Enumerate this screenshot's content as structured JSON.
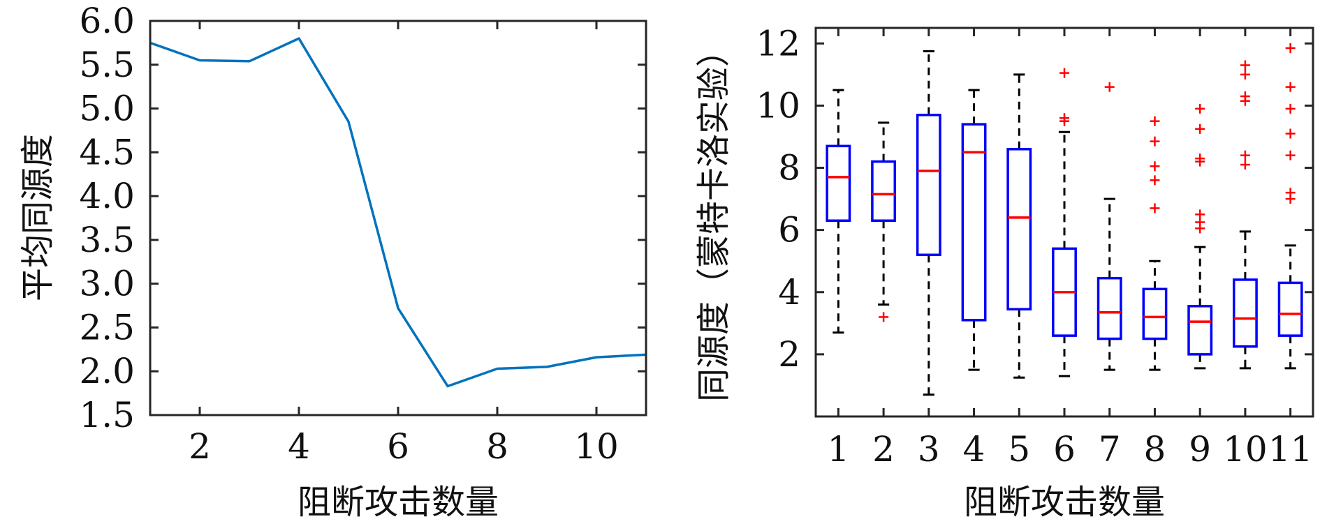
{
  "chart_data": [
    {
      "type": "line",
      "xlabel": "阻断攻击数量",
      "ylabel": "平均同源度",
      "xlim": [
        1,
        11
      ],
      "ylim": [
        1.5,
        6.0
      ],
      "xticks": [
        "2",
        "4",
        "6",
        "8",
        "10"
      ],
      "yticks": [
        "1.5",
        "2.0",
        "2.5",
        "3.0",
        "3.5",
        "4.0",
        "4.5",
        "5.0",
        "5.5",
        "6.0"
      ],
      "grid": false,
      "colors": {
        "line": "#0072BD",
        "axis": "#262626"
      },
      "x": [
        1,
        2,
        3,
        4,
        5,
        6,
        7,
        8,
        9,
        10,
        11
      ],
      "y": [
        5.75,
        5.55,
        5.54,
        5.8,
        4.85,
        2.72,
        1.83,
        2.03,
        2.05,
        2.16,
        2.19
      ]
    },
    {
      "type": "box",
      "xlabel": "阻断攻击数量",
      "ylabel": "同源度（蒙特卡洛实验）",
      "ylim": [
        0.0,
        12.5
      ],
      "categories": [
        "1",
        "2",
        "3",
        "4",
        "5",
        "6",
        "7",
        "8",
        "9",
        "10",
        "11"
      ],
      "yticks": [
        "2",
        "4",
        "6",
        "8",
        "10",
        "12"
      ],
      "grid": false,
      "colors": {
        "box": "#0000FF",
        "median": "#FF0000",
        "whisker": "#000000",
        "outlier": "#FF0000",
        "axis": "#262626"
      },
      "boxes": [
        {
          "whisker_low": 2.7,
          "q1": 6.3,
          "median": 7.7,
          "q3": 8.7,
          "whisker_high": 10.5,
          "outliers": []
        },
        {
          "whisker_low": 3.6,
          "q1": 6.3,
          "median": 7.15,
          "q3": 8.2,
          "whisker_high": 9.45,
          "outliers": [
            3.2
          ]
        },
        {
          "whisker_low": 0.7,
          "q1": 5.2,
          "median": 7.9,
          "q3": 9.7,
          "whisker_high": 11.75,
          "outliers": []
        },
        {
          "whisker_low": 1.5,
          "q1": 3.1,
          "median": 8.5,
          "q3": 9.4,
          "whisker_high": 10.5,
          "outliers": []
        },
        {
          "whisker_low": 1.25,
          "q1": 3.45,
          "median": 6.4,
          "q3": 8.6,
          "whisker_high": 11.0,
          "outliers": []
        },
        {
          "whisker_low": 1.3,
          "q1": 2.6,
          "median": 4.0,
          "q3": 5.4,
          "whisker_high": 9.15,
          "outliers": [
            9.5,
            9.6,
            11.05
          ]
        },
        {
          "whisker_low": 1.5,
          "q1": 2.5,
          "median": 3.35,
          "q3": 4.45,
          "whisker_high": 7.0,
          "outliers": [
            10.6
          ]
        },
        {
          "whisker_low": 1.5,
          "q1": 2.5,
          "median": 3.2,
          "q3": 4.1,
          "whisker_high": 5.0,
          "outliers": [
            6.7,
            7.6,
            8.05,
            8.85,
            9.5
          ]
        },
        {
          "whisker_low": 1.55,
          "q1": 2.0,
          "median": 3.05,
          "q3": 3.55,
          "whisker_high": 5.45,
          "outliers": [
            6.05,
            6.25,
            6.5,
            8.2,
            8.3,
            9.25,
            9.9
          ]
        },
        {
          "whisker_low": 1.55,
          "q1": 2.25,
          "median": 3.15,
          "q3": 4.4,
          "whisker_high": 5.95,
          "outliers": [
            8.1,
            8.4,
            10.15,
            10.3,
            11.0,
            11.3
          ]
        },
        {
          "whisker_low": 1.55,
          "q1": 2.6,
          "median": 3.3,
          "q3": 4.3,
          "whisker_high": 5.5,
          "outliers": [
            7.0,
            7.2,
            8.4,
            9.1,
            9.9,
            10.6,
            11.85
          ]
        }
      ]
    }
  ]
}
